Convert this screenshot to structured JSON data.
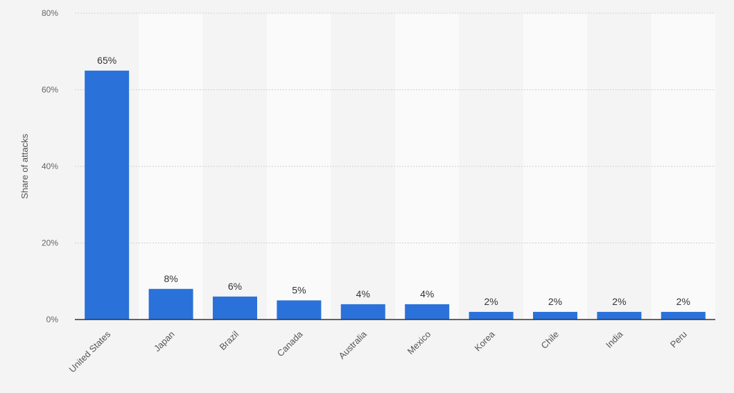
{
  "chart_data": {
    "type": "bar",
    "y_label": "Share of attacks",
    "categories": [
      "United States",
      "Japan",
      "Brazil",
      "Canada",
      "Australia",
      "Mexico",
      "Korea",
      "Chile",
      "India",
      "Peru"
    ],
    "values": [
      65,
      8,
      6,
      5,
      4,
      4,
      2,
      2,
      2,
      2
    ],
    "value_labels": [
      "65%",
      "8%",
      "6%",
      "5%",
      "4%",
      "4%",
      "2%",
      "2%",
      "2%",
      "2%"
    ],
    "color": "#2a72d9",
    "ylim": [
      0,
      80
    ],
    "yticks": [
      {
        "value": 0,
        "label": "0%"
      },
      {
        "value": 20,
        "label": "20%"
      },
      {
        "value": 40,
        "label": "40%"
      },
      {
        "value": 60,
        "label": "60%"
      },
      {
        "value": 80,
        "label": "80%"
      }
    ],
    "grid": true
  }
}
